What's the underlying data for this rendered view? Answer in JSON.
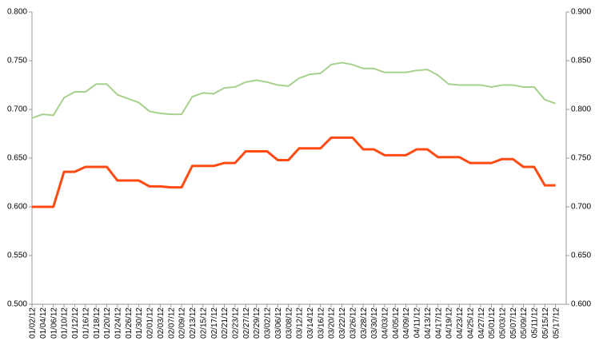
{
  "chart_data": {
    "type": "line",
    "categories": [
      "01/02/12",
      "01/04/12",
      "01/06/12",
      "01/10/12",
      "01/12/12",
      "01/16/12",
      "01/18/12",
      "01/20/12",
      "01/24/12",
      "01/26/12",
      "01/30/12",
      "02/01/12",
      "02/03/12",
      "02/07/12",
      "02/09/12",
      "02/13/12",
      "02/15/12",
      "02/17/12",
      "02/21/12",
      "02/23/12",
      "02/27/12",
      "02/29/12",
      "03/02/12",
      "03/06/12",
      "03/08/12",
      "03/12/12",
      "03/14/12",
      "03/16/12",
      "03/20/12",
      "03/22/12",
      "03/26/12",
      "03/28/12",
      "03/30/12",
      "04/03/12",
      "04/05/12",
      "04/09/12",
      "04/11/12",
      "04/13/12",
      "04/17/12",
      "04/19/12",
      "04/23/12",
      "04/25/12",
      "04/27/12",
      "05/01/12",
      "05/03/12",
      "05/07/12",
      "05/09/12",
      "05/11/12",
      "05/15/12",
      "05/17/12"
    ],
    "series": [
      {
        "color": "#ff4a12",
        "values": [
          0.6,
          0.6,
          0.6,
          0.636,
          0.636,
          0.641,
          0.641,
          0.641,
          0.627,
          0.627,
          0.627,
          0.621,
          0.621,
          0.62,
          0.62,
          0.642,
          0.642,
          0.642,
          0.645,
          0.645,
          0.657,
          0.657,
          0.657,
          0.648,
          0.648,
          0.66,
          0.66,
          0.66,
          0.671,
          0.671,
          0.671,
          0.659,
          0.659,
          0.653,
          0.653,
          0.653,
          0.659,
          0.659,
          0.651,
          0.651,
          0.651,
          0.645,
          0.645,
          0.645,
          0.649,
          0.649,
          0.641,
          0.641,
          0.622,
          0.622
        ]
      },
      {
        "color": "#a8d08d",
        "axis": "y2",
        "values": [
          0.791,
          0.795,
          0.794,
          0.812,
          0.818,
          0.818,
          0.826,
          0.826,
          0.815,
          0.811,
          0.807,
          0.798,
          0.796,
          0.795,
          0.795,
          0.813,
          0.817,
          0.816,
          0.822,
          0.823,
          0.828,
          0.83,
          0.828,
          0.825,
          0.824,
          0.832,
          0.836,
          0.837,
          0.846,
          0.848,
          0.846,
          0.842,
          0.842,
          0.838,
          0.838,
          0.838,
          0.84,
          0.841,
          0.835,
          0.826,
          0.825,
          0.825,
          0.825,
          0.823,
          0.825,
          0.825,
          0.823,
          0.823,
          0.81,
          0.806
        ]
      }
    ],
    "ylim": [
      0.5,
      0.8
    ],
    "yticks": [
      {
        "value": 0.5,
        "label": "0.500"
      },
      {
        "value": 0.55,
        "label": "0.550"
      },
      {
        "value": 0.6,
        "label": "0.600"
      },
      {
        "value": 0.65,
        "label": "0.650"
      },
      {
        "value": 0.7,
        "label": "0.700"
      },
      {
        "value": 0.75,
        "label": "0.750"
      },
      {
        "value": 0.8,
        "label": "0.800"
      }
    ],
    "y2lim": [
      0.6,
      0.9
    ],
    "y2ticks": [
      {
        "value": 0.6,
        "label": "0.600"
      },
      {
        "value": 0.65,
        "label": "0.650"
      },
      {
        "value": 0.7,
        "label": "0.700"
      },
      {
        "value": 0.75,
        "label": "0.750"
      },
      {
        "value": 0.8,
        "label": "0.800"
      },
      {
        "value": 0.85,
        "label": "0.850"
      },
      {
        "value": 0.9,
        "label": "0.900"
      }
    ]
  }
}
